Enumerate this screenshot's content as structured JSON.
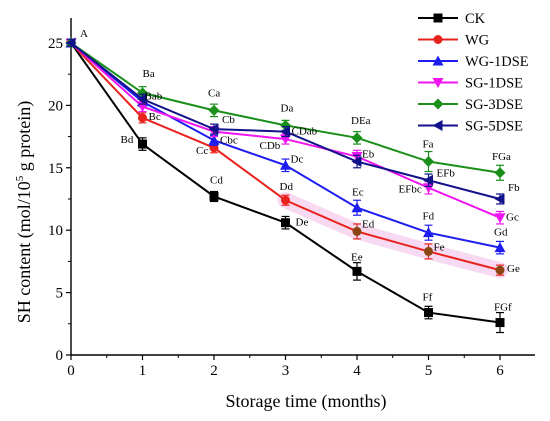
{
  "chart_data": {
    "type": "line",
    "xlabel": "Storage time (months)",
    "ylabel_prefix": "SH content (mol/10",
    "ylabel_sup": "5",
    "ylabel_suffix": " g protein)",
    "xlim": [
      0,
      6.6
    ],
    "ylim": [
      0,
      27
    ],
    "xticks": [
      0,
      1,
      2,
      3,
      4,
      5,
      6
    ],
    "yticks": [
      0,
      5,
      10,
      15,
      20,
      25
    ],
    "x": [
      0,
      1,
      2,
      3,
      4,
      5,
      6
    ],
    "start_label": "A",
    "series": [
      {
        "name": "CK",
        "color": "#000000",
        "marker": "square",
        "values": [
          25.0,
          16.9,
          12.7,
          10.6,
          6.7,
          3.4,
          2.6
        ],
        "errors": [
          0.3,
          0.5,
          0.4,
          0.5,
          0.7,
          0.5,
          0.8
        ],
        "labels": [
          "",
          "Bd",
          "Cd",
          "De",
          "Ee",
          "Ff",
          "FGf"
        ]
      },
      {
        "name": "WG",
        "color": "#e8231e",
        "marker": "circle",
        "end_color": "#8b4513",
        "values": [
          25.0,
          19.0,
          16.6,
          12.4,
          9.9,
          8.3,
          6.8
        ],
        "errors": [
          0.3,
          0.4,
          0.4,
          0.4,
          0.6,
          0.6,
          0.4
        ],
        "labels": [
          "",
          "Bc",
          "Cc",
          "Dd",
          "Ed",
          "Fe",
          "Ge"
        ]
      },
      {
        "name": "WG-1DSE",
        "color": "#1d1df0",
        "marker": "triangle-up",
        "values": [
          25.0,
          20.3,
          17.2,
          15.2,
          11.8,
          9.8,
          8.6
        ],
        "errors": [
          0.3,
          0.4,
          0.4,
          0.5,
          0.6,
          0.6,
          0.5
        ],
        "labels": [
          "",
          "Bab",
          "Cbc",
          "Dc",
          "Ec",
          "Fd",
          "Gd"
        ]
      },
      {
        "name": "SG-1DSE",
        "color": "#f014f0",
        "marker": "triangle-down",
        "values": [
          25.0,
          19.9,
          17.9,
          17.3,
          15.9,
          13.4,
          11.0
        ],
        "errors": [
          0.3,
          0.4,
          0.4,
          0.4,
          0.5,
          0.5,
          0.5
        ],
        "labels": [
          "",
          "",
          "",
          "CDb",
          "Eb",
          "EFbc",
          "Gc"
        ]
      },
      {
        "name": "SG-3DSE",
        "color": "#1a8f1a",
        "marker": "diamond",
        "values": [
          25.0,
          21.0,
          19.6,
          18.4,
          17.4,
          15.5,
          14.6
        ],
        "errors": [
          0.3,
          0.5,
          0.5,
          0.4,
          0.5,
          0.8,
          0.6
        ],
        "labels": [
          "",
          "Ba",
          "Ca",
          "Da",
          "DEa",
          "Fa",
          "FGa"
        ]
      },
      {
        "name": "SG-5DSE",
        "color": "#12128a",
        "marker": "triangle-left",
        "values": [
          25.0,
          20.5,
          18.1,
          17.9,
          15.5,
          14.0,
          12.5
        ],
        "errors": [
          0.3,
          0.4,
          0.4,
          0.4,
          0.5,
          0.5,
          0.4
        ],
        "labels": [
          "",
          "",
          "Cb",
          "CDab",
          "",
          "EFb",
          "Fb"
        ]
      }
    ],
    "legend_position": "top-right",
    "grid": false
  }
}
